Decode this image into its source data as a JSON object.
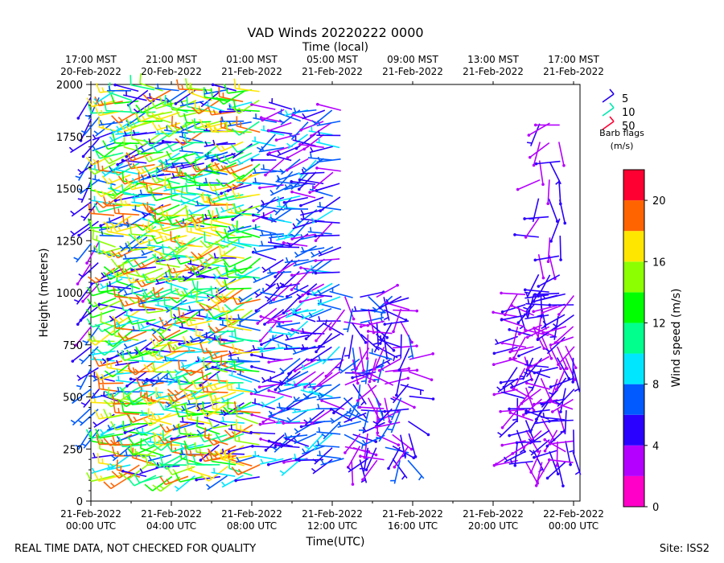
{
  "chart_data": {
    "type": "wind-barb-time-height",
    "title": "VAD Winds 20220222 0000",
    "top_axis_label": "Time (local)",
    "top_tick_labels": [
      [
        "17:00 MST",
        "20-Feb-2022"
      ],
      [
        "21:00 MST",
        "20-Feb-2022"
      ],
      [
        "01:00 MST",
        "21-Feb-2022"
      ],
      [
        "05:00 MST",
        "21-Feb-2022"
      ],
      [
        "09:00 MST",
        "21-Feb-2022"
      ],
      [
        "13:00 MST",
        "21-Feb-2022"
      ],
      [
        "17:00 MST",
        "21-Feb-2022"
      ]
    ],
    "xlabel": "Time(UTC)",
    "x_tick_hours": [
      0,
      4,
      8,
      12,
      16,
      20,
      24
    ],
    "x_tick_labels": [
      [
        "21-Feb-2022",
        "00:00 UTC"
      ],
      [
        "21-Feb-2022",
        "04:00 UTC"
      ],
      [
        "21-Feb-2022",
        "08:00 UTC"
      ],
      [
        "21-Feb-2022",
        "12:00 UTC"
      ],
      [
        "21-Feb-2022",
        "16:00 UTC"
      ],
      [
        "21-Feb-2022",
        "20:00 UTC"
      ],
      [
        "22-Feb-2022",
        "00:00 UTC"
      ]
    ],
    "xlim_hours": [
      0,
      24.3
    ],
    "ylabel": "Height (meters)",
    "ylim": [
      0,
      2000
    ],
    "y_ticks": [
      0,
      250,
      500,
      750,
      1000,
      1250,
      1500,
      1750,
      2000
    ],
    "legend": {
      "position": "top-right-outside",
      "entries": [
        {
          "label": "5",
          "color": "#2200ee"
        },
        {
          "label": "10",
          "color": "#00e8b0"
        },
        {
          "label": "50",
          "color": "#ff0033"
        }
      ],
      "note_line1": "Barb flags",
      "note_line2": "(m/s)"
    },
    "colorbar": {
      "label": "Wind speed (m/s)",
      "min": 0,
      "max": 22,
      "ticks": [
        0,
        4,
        8,
        12,
        16,
        20
      ],
      "colors": [
        "#ff00c8",
        "#b400ff",
        "#2a00ff",
        "#005aff",
        "#00e6ff",
        "#00ff8c",
        "#00ff00",
        "#8cff00",
        "#ffe600",
        "#ff6400",
        "#ff0032"
      ]
    },
    "data_blocks": [
      {
        "name": "early-profile",
        "t_start": 0.0,
        "t_end": 0.4,
        "dt": 0.4,
        "z_min": 340,
        "z_max": 1940,
        "dz": 100,
        "speed_range": [
          3,
          8
        ],
        "direction_range": [
          200,
          240
        ]
      },
      {
        "name": "main-night-profile",
        "t_start": 1.2,
        "t_end": 8.4,
        "dt": 0.4,
        "z_min": 120,
        "z_max": 2000,
        "dz": 50,
        "speed_range": [
          4,
          20
        ],
        "direction_range": [
          230,
          290
        ]
      },
      {
        "name": "dawn-profile",
        "t_start": 9.2,
        "t_end": 12.4,
        "dt": 0.4,
        "z_min": 200,
        "z_max": 1930,
        "dz": 60,
        "speed_range": [
          3,
          9
        ],
        "direction_range": [
          220,
          290
        ]
      },
      {
        "name": "morning-shallow-profile",
        "t_start": 12.6,
        "t_end": 15.8,
        "dt": 0.4,
        "z_min": 200,
        "z_max": 1000,
        "dz": 60,
        "speed_range": [
          2,
          7
        ],
        "direction_range": [
          60,
          300
        ]
      },
      {
        "name": "evening-profile",
        "t_start": 21.2,
        "t_end": 24.3,
        "dt": 0.4,
        "z_min": 190,
        "z_max": 1000,
        "dz": 50,
        "speed_range": [
          2,
          6
        ],
        "direction_range": [
          150,
          300
        ]
      },
      {
        "name": "evening-upper-profile",
        "t_start": 22.3,
        "t_end": 23.3,
        "dt": 0.5,
        "z_min": 1000,
        "z_max": 1840,
        "dz": 90,
        "speed_range": [
          2,
          6
        ],
        "direction_range": [
          150,
          280
        ]
      }
    ]
  },
  "footer": {
    "left_note": "REAL TIME DATA, NOT CHECKED FOR QUALITY",
    "site": "Site: ISS2"
  }
}
